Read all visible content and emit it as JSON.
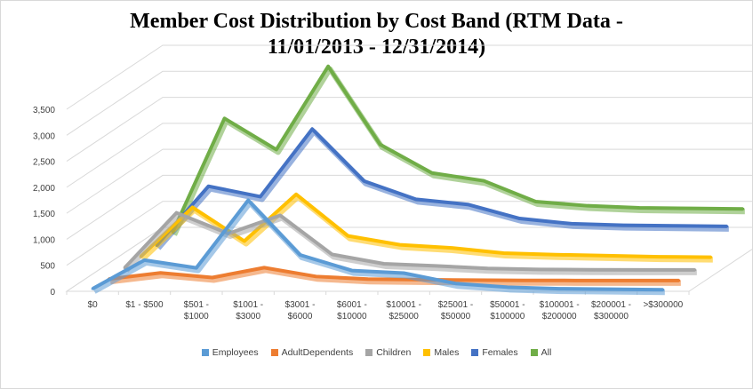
{
  "chart_data": {
    "type": "line",
    "style": "3d-line",
    "title_line1": "Member Cost Distribution by Cost Band (RTM Data -",
    "title_line2": "11/01/2013 - 12/31/2014)",
    "categories": [
      "$0",
      "$1 - $500",
      "$501 - $1000",
      "$1001 - $3000",
      "$3001 - $6000",
      "$6001 - $10000",
      "$10001 - $25000",
      "$25001 - $50000",
      "$50001 - $100000",
      "$100001 - $200000",
      "$200001 - $300000",
      ">$300000"
    ],
    "category_lines": [
      [
        "$0"
      ],
      [
        "$1 - $500"
      ],
      [
        "$501 -",
        "$1000"
      ],
      [
        "$1001 -",
        "$3000"
      ],
      [
        "$3001 -",
        "$6000"
      ],
      [
        "$6001 -",
        "$10000"
      ],
      [
        "$10001 -",
        "$25000"
      ],
      [
        "$25001 -",
        "$50000"
      ],
      [
        "$50001 -",
        "$100000"
      ],
      [
        "$100001 -",
        "$200000"
      ],
      [
        "$200001 -",
        "$300000"
      ],
      [
        ">$300000"
      ]
    ],
    "ylim": [
      0,
      3500
    ],
    "yticks": [
      0,
      500,
      1000,
      1500,
      2000,
      2500,
      3000,
      3500
    ],
    "ytick_labels": [
      "0",
      "500",
      "1,000",
      "1,500",
      "2,000",
      "2,500",
      "3,000",
      "3,500"
    ],
    "grid": true,
    "legend_position": "bottom",
    "series": [
      {
        "name": "Employees",
        "color": "#5b9bd5",
        "values": [
          50,
          600,
          450,
          1750,
          700,
          400,
          350,
          150,
          80,
          50,
          40,
          30
        ]
      },
      {
        "name": "AdultDependents",
        "color": "#ed7d31",
        "values": [
          30,
          150,
          60,
          250,
          80,
          30,
          20,
          10,
          5,
          3,
          2,
          2
        ]
      },
      {
        "name": "Children",
        "color": "#a5a5a5",
        "values": [
          40,
          1100,
          700,
          1050,
          300,
          120,
          80,
          30,
          10,
          5,
          3,
          2
        ]
      },
      {
        "name": "Males",
        "color": "#ffc000",
        "values": [
          50,
          1000,
          350,
          1250,
          450,
          280,
          220,
          120,
          90,
          70,
          50,
          40
        ]
      },
      {
        "name": "Females",
        "color": "#4472c4",
        "values": [
          60,
          1200,
          1000,
          2300,
          1300,
          950,
          850,
          580,
          480,
          450,
          440,
          430
        ]
      },
      {
        "name": "All",
        "color": "#70ad47",
        "values": [
          110,
          2300,
          1700,
          3300,
          1800,
          1250,
          1100,
          700,
          620,
          580,
          570,
          560
        ]
      }
    ]
  }
}
